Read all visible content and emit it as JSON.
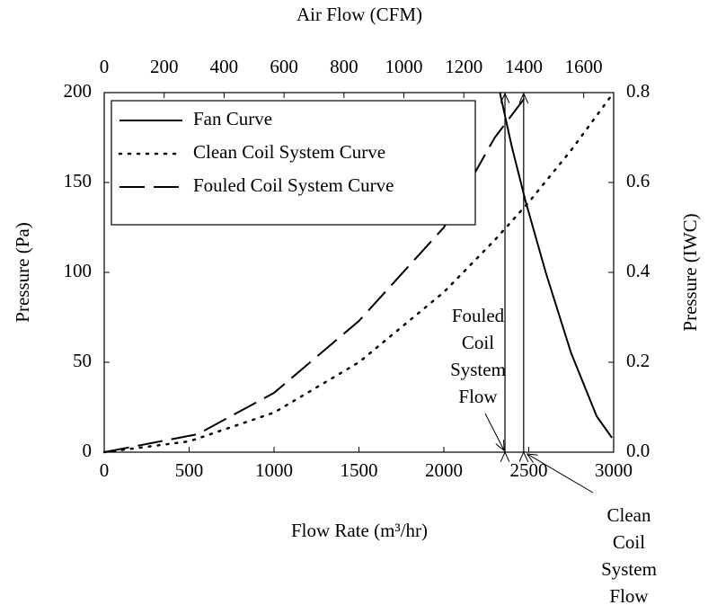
{
  "chart_data": {
    "type": "line",
    "title": "Air Flow (CFM)",
    "xlabel": "Flow Rate (m³/hr)",
    "ylabel": "Pressure (Pa)",
    "y2label": "Pressure (IWC)",
    "xlim": [
      0,
      3000
    ],
    "xticks": [
      0,
      500,
      1000,
      1500,
      2000,
      2500,
      3000
    ],
    "ylim": [
      0,
      200
    ],
    "yticks": [
      0,
      50,
      100,
      150,
      200
    ],
    "x2lim": [
      0,
      1700
    ],
    "x2ticks": [
      0,
      200,
      400,
      600,
      800,
      1000,
      1200,
      1400,
      1600
    ],
    "y2lim": [
      0,
      0.8
    ],
    "y2ticks": [
      {
        "value": 0,
        "label": "0.0"
      },
      {
        "value": 0.2,
        "label": "0.2"
      },
      {
        "value": 0.4,
        "label": "0.4"
      },
      {
        "value": 0.6,
        "label": "0.6"
      },
      {
        "value": 0.8,
        "label": "0.8"
      }
    ],
    "legend": "upper left",
    "series": [
      {
        "name": "Fan Curve",
        "color": "#000000",
        "line_style": "solid",
        "x": [
          2330,
          2400,
          2480,
          2600,
          2750,
          2900,
          2990
        ],
        "values": [
          200,
          170,
          140,
          100,
          55,
          20,
          8
        ]
      },
      {
        "name": "Clean Coil System Curve",
        "color": "#000000",
        "line_style": "dotted",
        "x": [
          0,
          500,
          1000,
          1500,
          2000,
          2300,
          2500,
          2750,
          3000
        ],
        "values": [
          0,
          6,
          22,
          50,
          89,
          118,
          139,
          168,
          200
        ]
      },
      {
        "name": "Fouled Coil System Curve",
        "color": "#000000",
        "line_style": "dashed",
        "x": [
          0,
          550,
          1000,
          1500,
          2000,
          2300,
          2500
        ],
        "values": [
          0,
          10,
          33,
          73,
          125,
          175,
          200
        ]
      }
    ],
    "annotations": [
      {
        "lines": [
          "Fouled",
          "Coil",
          "System",
          "Flow"
        ],
        "x": 2360
      },
      {
        "lines": [
          "Clean",
          "Coil",
          "System",
          "Flow"
        ],
        "x": 2470
      }
    ]
  }
}
